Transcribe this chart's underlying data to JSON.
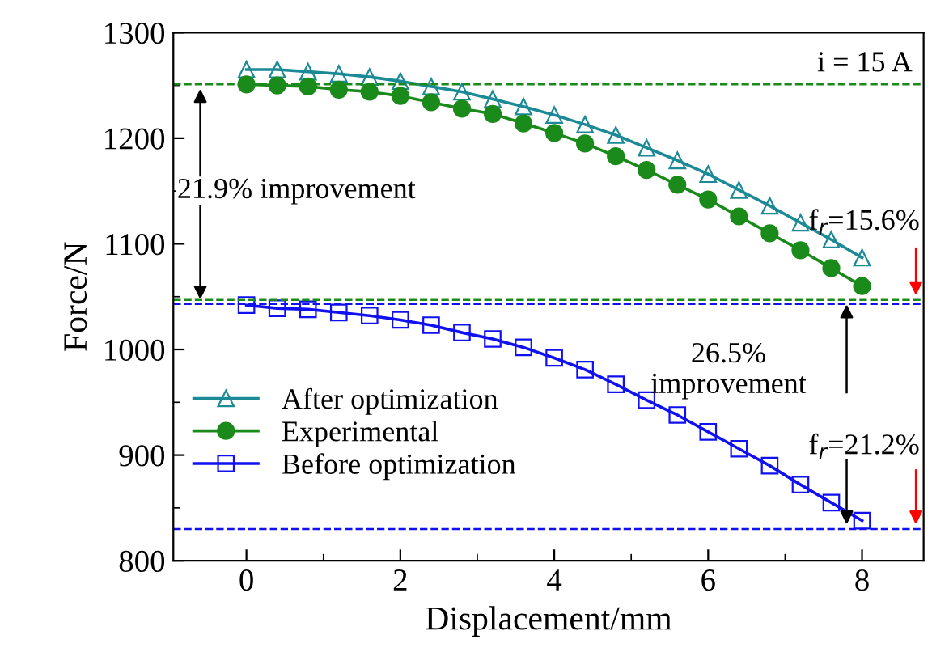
{
  "chart_data": {
    "type": "line",
    "xlabel": "Displacement/mm",
    "ylabel": "Force/N",
    "x": [
      0,
      0.4,
      0.8,
      1.2,
      1.6,
      2.0,
      2.4,
      2.8,
      3.2,
      3.6,
      4.0,
      4.4,
      4.8,
      5.2,
      5.6,
      6.0,
      6.4,
      6.8,
      7.2,
      7.6,
      8.0
    ],
    "series": [
      {
        "name": "After optimization",
        "color": "#1b8a96",
        "marker": "triangle",
        "values": [
          1265,
          1265,
          1263,
          1261,
          1258,
          1254,
          1249,
          1244,
          1237,
          1230,
          1222,
          1213,
          1203,
          1191,
          1179,
          1166,
          1151,
          1136,
          1120,
          1104,
          1087
        ]
      },
      {
        "name": "Experimental",
        "color": "#1a8a1a",
        "marker": "circle",
        "values": [
          1251,
          1250,
          1249,
          1246,
          1244,
          1240,
          1234,
          1228,
          1223,
          1214,
          1205,
          1195,
          1183,
          1170,
          1156,
          1142,
          1126,
          1110,
          1094,
          1077,
          1060
        ]
      },
      {
        "name": "Before optimization",
        "color": "#1010f0",
        "marker": "square",
        "values": [
          1042,
          1039,
          1038,
          1035,
          1032,
          1028,
          1023,
          1016,
          1010,
          1002,
          992,
          981,
          967,
          952,
          938,
          922,
          906,
          890,
          872,
          855,
          838
        ]
      }
    ],
    "xlim": [
      -0.95,
      8.8
    ],
    "ylim": [
      800,
      1300
    ],
    "xticks": [
      0,
      2,
      4,
      6,
      8
    ],
    "yticks": [
      800,
      900,
      1000,
      1100,
      1200,
      1300
    ],
    "ref_lines": [
      {
        "axis": "y",
        "value": 1251,
        "color": "#1a8a1a",
        "line_style": "dashed"
      },
      {
        "axis": "y",
        "value": 1047,
        "color": "#1a8a1a",
        "line_style": "dashed"
      },
      {
        "axis": "y",
        "value": 1043,
        "color": "#1010f0",
        "line_style": "dashed"
      },
      {
        "axis": "y",
        "value": 830,
        "color": "#1010f0",
        "line_style": "dashed"
      }
    ],
    "annotations": [
      "i = 15 A",
      "21.9% improvement",
      "26.5%\nimprovement",
      "f$_{r}$=15.6%",
      "f$_{r}$=21.2%"
    ],
    "legend": "left",
    "grid": false
  }
}
